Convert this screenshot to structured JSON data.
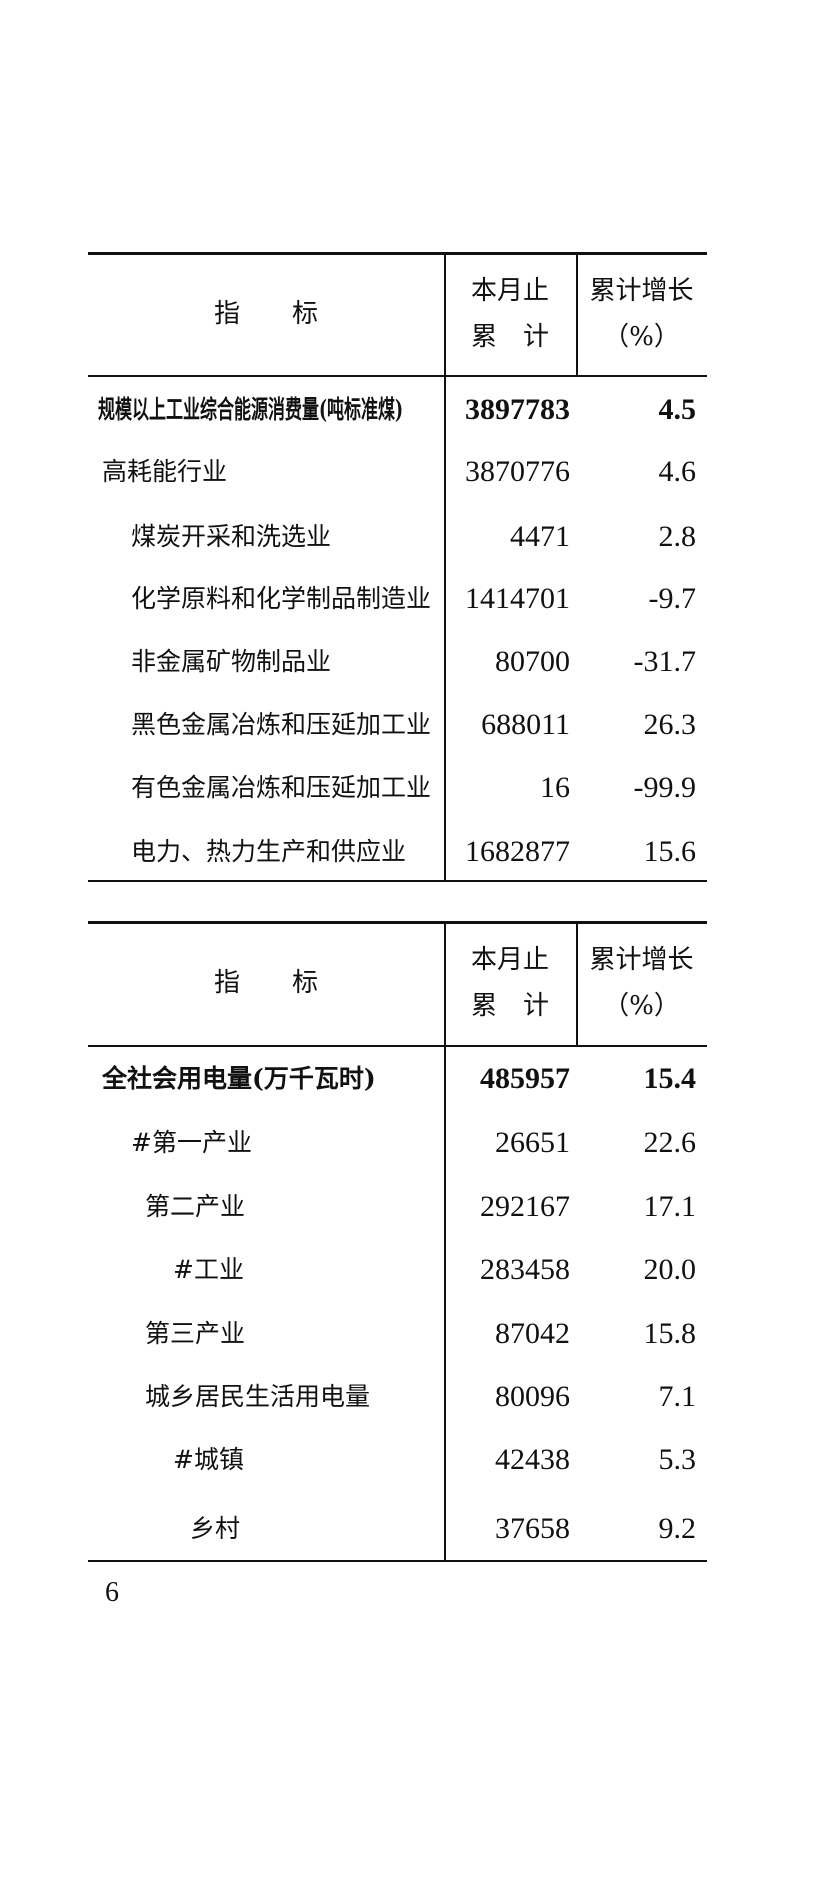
{
  "table1": {
    "headers": {
      "indicator": "指　　标",
      "cumulative_line1": "本月止",
      "cumulative_line2": "累　计",
      "growth_line1": "累计增长",
      "growth_line2": "（%）"
    },
    "rows": [
      {
        "label": "规模以上工业综合能源消费量(吨标准煤)",
        "value": "3897783",
        "growth": "4.5"
      },
      {
        "label": "高耗能行业",
        "value": "3870776",
        "growth": "4.6"
      },
      {
        "label": "煤炭开采和洗选业",
        "value": "4471",
        "growth": "2.8"
      },
      {
        "label": "化学原料和化学制品制造业",
        "value": "1414701",
        "growth": "-9.7"
      },
      {
        "label": "非金属矿物制品业",
        "value": "80700",
        "growth": "-31.7"
      },
      {
        "label": "黑色金属冶炼和压延加工业",
        "value": "688011",
        "growth": "26.3"
      },
      {
        "label": "有色金属冶炼和压延加工业",
        "value": "16",
        "growth": "-99.9"
      },
      {
        "label": "电力、热力生产和供应业",
        "value": "1682877",
        "growth": "15.6"
      }
    ]
  },
  "table2": {
    "headers": {
      "indicator": "指　　标",
      "cumulative_line1": "本月止",
      "cumulative_line2": "累　计",
      "growth_line1": "累计增长",
      "growth_line2": "（%）"
    },
    "rows": [
      {
        "label": "全社会用电量(万千瓦时)",
        "value": "485957",
        "growth": "15.4"
      },
      {
        "label": "#第一产业",
        "value": "26651",
        "growth": "22.6"
      },
      {
        "label": "第二产业",
        "value": "292167",
        "growth": "17.1"
      },
      {
        "label": "#工业",
        "value": "283458",
        "growth": "20.0"
      },
      {
        "label": "第三产业",
        "value": "87042",
        "growth": "15.8"
      },
      {
        "label": "城乡居民生活用电量",
        "value": "80096",
        "growth": "7.1"
      },
      {
        "label": "#城镇",
        "value": "42438",
        "growth": "5.3"
      },
      {
        "label": "乡村",
        "value": "37658",
        "growth": "9.2"
      }
    ]
  },
  "page_number": "6"
}
